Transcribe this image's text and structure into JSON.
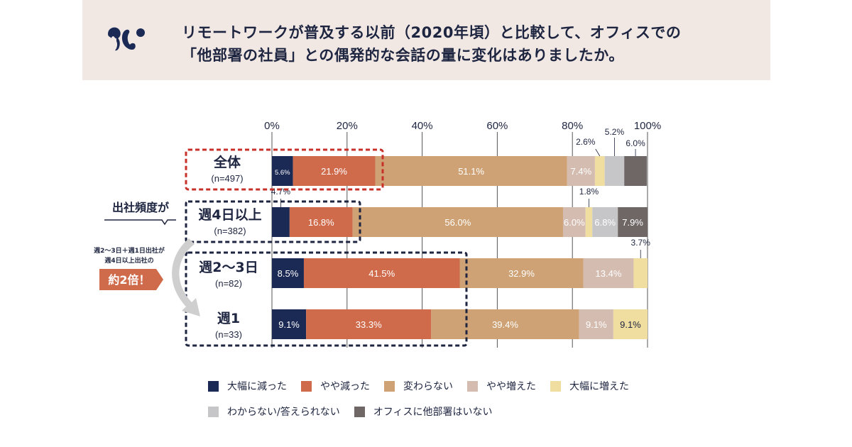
{
  "header": {
    "logo_icon": "brand-logo",
    "title_line1": "リモートワークが普及する以前（2020年頃）と比較して、オフィスでの",
    "title_line2": "「他部署の社員」との偶発的な会話の量に変化はありましたか。"
  },
  "annotation": {
    "group_label": "出社頻度が",
    "note_line1": "週2〜3日＋週1日出社が",
    "note_line2": "週4日以上出社の",
    "badge": "約2倍！",
    "arrow_icon": "curved-arrow-down"
  },
  "chart_data": {
    "type": "bar",
    "orientation": "horizontal",
    "stacked": true,
    "title": "リモートワークが普及する以前（2020年頃）と比較して、オフィスでの「他部署の社員」との偶発的な会話の量に変化はありましたか。",
    "xlabel": "",
    "ylabel": "",
    "xlim": [
      0,
      100
    ],
    "x_ticks": [
      "0%",
      "20%",
      "40%",
      "60%",
      "80%",
      "100%"
    ],
    "grid": true,
    "legend_position": "bottom",
    "categories": [
      {
        "name": "全体",
        "n": "(n=497)",
        "highlight": "red-dashed"
      },
      {
        "name": "週4日以上",
        "n": "(n=382)",
        "highlight": "black-dashed"
      },
      {
        "name": "週2〜3日",
        "n": "(n=82)",
        "highlight": "black-dashed-group"
      },
      {
        "name": "週1",
        "n": "(n=33)",
        "highlight": "black-dashed-group"
      }
    ],
    "series": [
      {
        "name": "大幅に減った",
        "color": "#1b2a55",
        "values": [
          5.6,
          4.7,
          8.5,
          9.1
        ],
        "labels": [
          "5.6%",
          "4.7%",
          "8.5%",
          "9.1%"
        ]
      },
      {
        "name": "やや減った",
        "color": "#cf6a4b",
        "values": [
          21.9,
          16.8,
          41.5,
          33.3
        ],
        "labels": [
          "21.9%",
          "16.8%",
          "41.5%",
          "33.3%"
        ]
      },
      {
        "name": "変わらない",
        "color": "#cea274",
        "values": [
          51.1,
          56.0,
          32.9,
          39.4
        ],
        "labels": [
          "51.1%",
          "56.0%",
          "32.9%",
          "39.4%"
        ]
      },
      {
        "name": "やや増えた",
        "color": "#d5bcb0",
        "values": [
          7.4,
          6.0,
          13.4,
          9.1
        ],
        "labels": [
          "7.4%",
          "6.0%",
          "13.4%",
          "9.1%"
        ]
      },
      {
        "name": "大幅に増えた",
        "color": "#f0dea0",
        "values": [
          2.6,
          1.8,
          3.7,
          9.1
        ],
        "labels": [
          "2.6%",
          "1.8%",
          "3.7%",
          "9.1%"
        ]
      },
      {
        "name": "わからない/答えられない",
        "color": "#c6c6c8",
        "values": [
          5.2,
          6.8,
          0,
          0
        ],
        "labels": [
          "5.2%",
          "6.8%",
          "",
          ""
        ]
      },
      {
        "name": "オフィスに他部署はいない",
        "color": "#6e6766",
        "values": [
          6.0,
          7.9,
          0,
          0
        ],
        "labels": [
          "6.0%",
          "7.9%",
          "",
          ""
        ]
      }
    ]
  },
  "legend": [
    {
      "label": "大幅に減った",
      "color": "#1b2a55"
    },
    {
      "label": "やや減った",
      "color": "#cf6a4b"
    },
    {
      "label": "変わらない",
      "color": "#cea274"
    },
    {
      "label": "やや増えた",
      "color": "#d5bcb0"
    },
    {
      "label": "大幅に増えた",
      "color": "#f0dea0"
    },
    {
      "label": "わからない/答えられない",
      "color": "#c6c6c8"
    },
    {
      "label": "オフィスに他部署はいない",
      "color": "#6e6766"
    }
  ]
}
